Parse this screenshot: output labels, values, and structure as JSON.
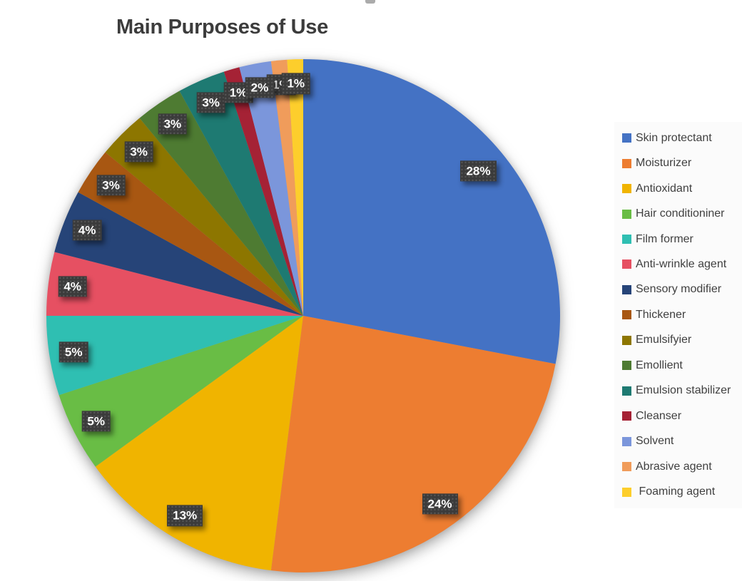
{
  "page": {
    "background": "#FFFFFF"
  },
  "chart_data": {
    "type": "pie",
    "title": "Main Purposes of Use",
    "unit": "%",
    "start_angle_deg": 0,
    "direction": "clockwise",
    "legend_position": "right",
    "categories": [
      "Skin protectant",
      "Moisturizer",
      "Antioxidant",
      "Hair conditioniner",
      "Film former",
      "Anti-wrinkle agent",
      "Sensory modifier",
      "Thickener",
      "Emulsifyier",
      "Emollient",
      "Emulsion stabilizer",
      "Cleanser",
      "Solvent",
      "Abrasive agent",
      " Foaming agent"
    ],
    "values": [
      28,
      24,
      13,
      5,
      5,
      4,
      4,
      3,
      3,
      3,
      3,
      1,
      2,
      1,
      1
    ],
    "data_labels": [
      "28%",
      "24%",
      "13%",
      "5%",
      "5%",
      "4%",
      "4%",
      "3%",
      "3%",
      "3%",
      "3%",
      "1%",
      "2%",
      "1%",
      "1%"
    ],
    "colors": [
      "#4472C4",
      "#ED7D31",
      "#F0B400",
      "#69BD45",
      "#2FBFB2",
      "#E65062",
      "#264478",
      "#A85712",
      "#8D7600",
      "#4E7B32",
      "#1E7A72",
      "#A52235",
      "#7B96DB",
      "#F09C5B",
      "#FDCE2C"
    ],
    "label_box_color": "#3B3B3B",
    "label_text_color": "#FFFFFF",
    "title_color": "#3C3C3C",
    "legend_text_color": "#404040"
  }
}
